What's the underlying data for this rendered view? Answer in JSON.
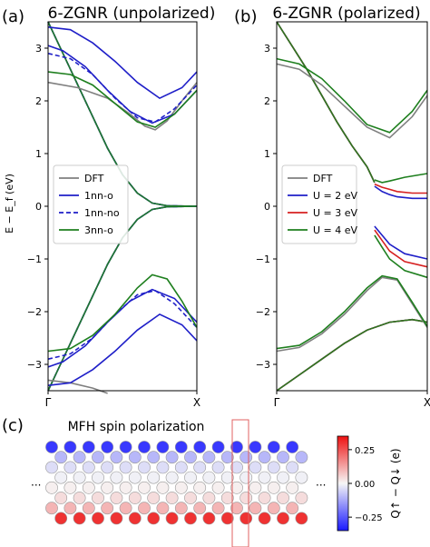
{
  "chart_data": [
    {
      "type": "line",
      "panel_label": "(a)",
      "title": "6-ZGNR (unpolarized)",
      "ylabel": "E − E_f (eV)",
      "xticks": [
        "Γ",
        "X"
      ],
      "ylim": [
        -3.5,
        3.5
      ],
      "yticks": [
        -3,
        -2,
        -1,
        0,
        1,
        2,
        3
      ],
      "legend_position": "center-left",
      "series": [
        {
          "name": "DFT",
          "color": "#7f7f7f",
          "style": "solid",
          "bands": [
            [
              [
                0,
                2.35
              ],
              [
                0.2,
                2.25
              ],
              [
                0.4,
                2.05
              ],
              [
                0.55,
                1.75
              ],
              [
                0.65,
                1.52
              ],
              [
                0.72,
                1.45
              ],
              [
                0.8,
                1.62
              ],
              [
                0.9,
                2.0
              ],
              [
                1,
                2.35
              ]
            ],
            [
              [
                0,
                -3.3
              ],
              [
                0.15,
                -3.35
              ],
              [
                0.3,
                -3.45
              ],
              [
                0.4,
                -3.55
              ]
            ]
          ]
        },
        {
          "name": "1nn-o",
          "color": "#1f1fc8",
          "style": "solid",
          "bands": [
            [
              [
                0,
                3.05
              ],
              [
                0.1,
                2.95
              ],
              [
                0.25,
                2.65
              ],
              [
                0.4,
                2.2
              ],
              [
                0.55,
                1.8
              ],
              [
                0.7,
                1.58
              ],
              [
                0.85,
                1.75
              ],
              [
                1,
                2.2
              ]
            ],
            [
              [
                0,
                3.4
              ],
              [
                0.15,
                3.35
              ],
              [
                0.3,
                3.1
              ],
              [
                0.45,
                2.75
              ],
              [
                0.6,
                2.35
              ],
              [
                0.75,
                2.05
              ],
              [
                0.9,
                2.25
              ],
              [
                1,
                2.55
              ]
            ],
            [
              [
                0,
                -3.05
              ],
              [
                0.1,
                -2.95
              ],
              [
                0.25,
                -2.65
              ],
              [
                0.4,
                -2.2
              ],
              [
                0.55,
                -1.8
              ],
              [
                0.7,
                -1.58
              ],
              [
                0.85,
                -1.75
              ],
              [
                1,
                -2.2
              ]
            ],
            [
              [
                0,
                -3.4
              ],
              [
                0.15,
                -3.35
              ],
              [
                0.3,
                -3.1
              ],
              [
                0.45,
                -2.75
              ],
              [
                0.6,
                -2.35
              ],
              [
                0.75,
                -2.05
              ],
              [
                0.9,
                -2.25
              ],
              [
                1,
                -2.55
              ]
            ]
          ]
        },
        {
          "name": "1nn-no",
          "color": "#1f1fc8",
          "style": "dashed",
          "bands": [
            [
              [
                0,
                2.9
              ],
              [
                0.15,
                2.8
              ],
              [
                0.3,
                2.5
              ],
              [
                0.45,
                2.05
              ],
              [
                0.6,
                1.68
              ],
              [
                0.72,
                1.6
              ],
              [
                0.85,
                1.85
              ],
              [
                1,
                2.3
              ]
            ],
            [
              [
                0,
                -2.9
              ],
              [
                0.15,
                -2.8
              ],
              [
                0.3,
                -2.5
              ],
              [
                0.45,
                -2.05
              ],
              [
                0.6,
                -1.68
              ],
              [
                0.72,
                -1.6
              ],
              [
                0.85,
                -1.85
              ],
              [
                1,
                -2.3
              ]
            ]
          ]
        },
        {
          "name": "3nn-o",
          "color": "#1e7f1e",
          "style": "solid",
          "bands": [
            [
              [
                0,
                2.55
              ],
              [
                0.15,
                2.5
              ],
              [
                0.3,
                2.3
              ],
              [
                0.45,
                1.95
              ],
              [
                0.6,
                1.6
              ],
              [
                0.72,
                1.5
              ],
              [
                0.85,
                1.75
              ],
              [
                1,
                2.2
              ]
            ],
            [
              [
                0,
                -2.75
              ],
              [
                0.15,
                -2.7
              ],
              [
                0.3,
                -2.45
              ],
              [
                0.45,
                -2.05
              ],
              [
                0.6,
                -1.55
              ],
              [
                0.7,
                -1.3
              ],
              [
                0.8,
                -1.38
              ],
              [
                0.9,
                -1.8
              ],
              [
                1,
                -2.3
              ]
            ]
          ]
        }
      ],
      "shared_band": [
        [
          0,
          3.5
        ],
        [
          0.1,
          2.9
        ],
        [
          0.2,
          2.3
        ],
        [
          0.3,
          1.7
        ],
        [
          0.4,
          1.1
        ],
        [
          0.5,
          0.6
        ],
        [
          0.6,
          0.25
        ],
        [
          0.7,
          0.06
        ],
        [
          0.8,
          0.01
        ],
        [
          1,
          0
        ]
      ]
    },
    {
      "type": "line",
      "panel_label": "(b)",
      "title": "6-ZGNR (polarized)",
      "ylabel": "",
      "xticks": [
        "Γ",
        "X"
      ],
      "ylim": [
        -3.5,
        3.5
      ],
      "yticks": [
        -3,
        -2,
        -1,
        0,
        1,
        2,
        3
      ],
      "legend_position": "center-left",
      "series": [
        {
          "name": "DFT",
          "color": "#7f7f7f",
          "style": "solid",
          "bands": [
            [
              [
                0,
                2.7
              ],
              [
                0.15,
                2.6
              ],
              [
                0.3,
                2.3
              ],
              [
                0.45,
                1.9
              ],
              [
                0.6,
                1.5
              ],
              [
                0.75,
                1.3
              ],
              [
                0.9,
                1.7
              ],
              [
                1,
                2.1
              ]
            ],
            [
              [
                0,
                -2.75
              ],
              [
                0.15,
                -2.68
              ],
              [
                0.3,
                -2.42
              ],
              [
                0.45,
                -2.05
              ],
              [
                0.6,
                -1.6
              ],
              [
                0.7,
                -1.35
              ],
              [
                0.8,
                -1.4
              ],
              [
                0.9,
                -1.85
              ],
              [
                1,
                -2.3
              ]
            ]
          ]
        },
        {
          "name": "U = 2 eV",
          "color": "#1f1fc8",
          "style": "solid",
          "bands": [
            [
              [
                0.65,
                0.38
              ],
              [
                0.7,
                0.28
              ],
              [
                0.75,
                0.22
              ],
              [
                0.8,
                0.18
              ],
              [
                0.9,
                0.15
              ],
              [
                1,
                0.15
              ]
            ],
            [
              [
                0.65,
                -0.38
              ],
              [
                0.7,
                -0.55
              ],
              [
                0.75,
                -0.72
              ],
              [
                0.85,
                -0.9
              ],
              [
                1,
                -1.0
              ]
            ]
          ]
        },
        {
          "name": "U = 3 eV",
          "color": "#d62020",
          "style": "solid",
          "bands": [
            [
              [
                0.65,
                0.42
              ],
              [
                0.7,
                0.36
              ],
              [
                0.75,
                0.32
              ],
              [
                0.8,
                0.28
              ],
              [
                0.9,
                0.25
              ],
              [
                1,
                0.25
              ]
            ],
            [
              [
                0.65,
                -0.45
              ],
              [
                0.7,
                -0.65
              ],
              [
                0.75,
                -0.85
              ],
              [
                0.85,
                -1.05
              ],
              [
                1,
                -1.15
              ]
            ]
          ]
        },
        {
          "name": "U = 4 eV",
          "color": "#1e7f1e",
          "style": "solid",
          "bands": [
            [
              [
                0,
                2.8
              ],
              [
                0.15,
                2.7
              ],
              [
                0.3,
                2.42
              ],
              [
                0.45,
                2.0
              ],
              [
                0.6,
                1.55
              ],
              [
                0.75,
                1.4
              ],
              [
                0.9,
                1.8
              ],
              [
                1,
                2.2
              ]
            ],
            [
              [
                0.65,
                0.5
              ],
              [
                0.7,
                0.45
              ],
              [
                0.75,
                0.48
              ],
              [
                0.85,
                0.55
              ],
              [
                1,
                0.62
              ]
            ],
            [
              [
                0.65,
                -0.55
              ],
              [
                0.7,
                -0.78
              ],
              [
                0.75,
                -1.0
              ],
              [
                0.85,
                -1.22
              ],
              [
                1,
                -1.35
              ]
            ],
            [
              [
                0,
                -2.7
              ],
              [
                0.15,
                -2.64
              ],
              [
                0.3,
                -2.38
              ],
              [
                0.45,
                -2.0
              ],
              [
                0.6,
                -1.55
              ],
              [
                0.7,
                -1.32
              ],
              [
                0.8,
                -1.38
              ],
              [
                0.9,
                -1.82
              ],
              [
                1,
                -2.28
              ]
            ]
          ]
        }
      ],
      "shared_band": [
        [
          0,
          3.5
        ],
        [
          0.1,
          3.05
        ],
        [
          0.2,
          2.6
        ],
        [
          0.3,
          2.1
        ],
        [
          0.4,
          1.6
        ],
        [
          0.5,
          1.15
        ],
        [
          0.6,
          0.75
        ],
        [
          0.65,
          0.45
        ]
      ],
      "shared_band_lower": [
        [
          0,
          -3.5
        ],
        [
          0.15,
          -3.2
        ],
        [
          0.3,
          -2.9
        ],
        [
          0.45,
          -2.6
        ],
        [
          0.6,
          -2.35
        ],
        [
          0.75,
          -2.2
        ],
        [
          0.9,
          -2.15
        ],
        [
          1,
          -2.2
        ]
      ]
    },
    {
      "type": "heatmap",
      "panel_label": "(c)",
      "title": "MFH spin polarization",
      "colorbar_label": "Q↑ − Q↓ (e)",
      "colorbar_ticks": [
        0.25,
        0.0,
        -0.25
      ],
      "colorbar_tick_labels": [
        "0.25",
        "0.00",
        "−0.25"
      ],
      "vmin": -0.35,
      "vmax": 0.35,
      "ellipsis": "···",
      "row_values": [
        -0.3,
        -0.1,
        -0.04,
        -0.01,
        0.01,
        0.04,
        0.1,
        0.3
      ],
      "columns": 14
    }
  ]
}
